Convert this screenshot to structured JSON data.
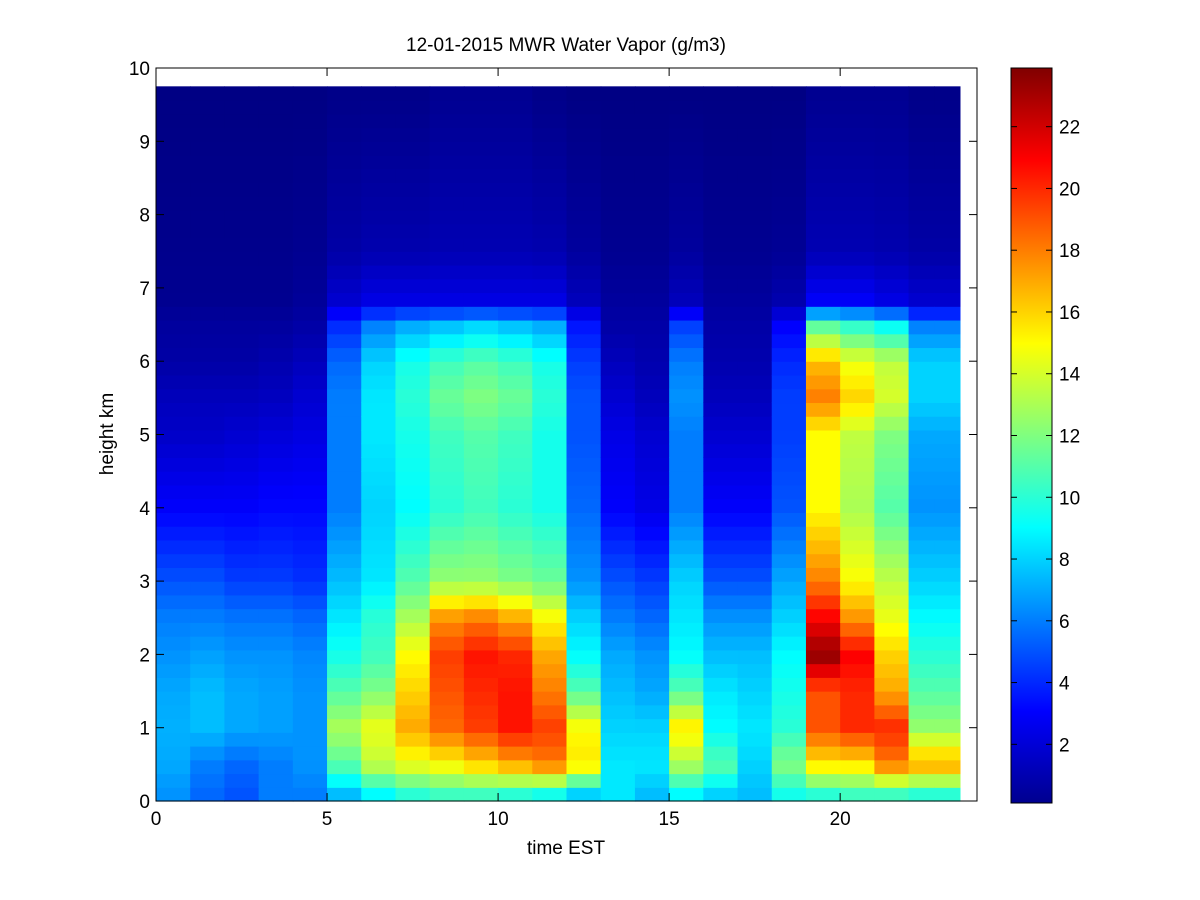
{
  "chart_data": {
    "type": "heatmap",
    "title": "12-01-2015 MWR Water Vapor (g/m3)",
    "xlabel": "time EST",
    "ylabel": "height km",
    "xlim": [
      0,
      24
    ],
    "ylim": [
      0,
      10
    ],
    "x_ticks": [
      "0",
      "5",
      "10",
      "15",
      "20"
    ],
    "y_ticks": [
      "0",
      "1",
      "2",
      "3",
      "4",
      "5",
      "6",
      "7",
      "8",
      "9",
      "10"
    ],
    "colorbar": {
      "colormap": "jet",
      "range": [
        0.1,
        23.9
      ],
      "ticks": [
        "2",
        "4",
        "6",
        "8",
        "10",
        "12",
        "14",
        "16",
        "18",
        "20",
        "22"
      ]
    },
    "data_extent": {
      "x_start": 0,
      "x_end": 23.5,
      "y_start": 0,
      "y_end": 9.75
    },
    "time_hours": [
      0.5,
      1.5,
      2.5,
      3.5,
      4.5,
      5.5,
      6.5,
      7.5,
      8.5,
      9.5,
      10.5,
      11.5,
      12.5,
      13.5,
      14.5,
      15.5,
      16.5,
      17.5,
      18.5,
      19.5,
      20.5,
      21.5,
      22.5,
      23.0
    ],
    "profile_heights_km": [
      0.1,
      0.5,
      1.0,
      1.5,
      2.0,
      2.5,
      3.0,
      4.0,
      5.0,
      5.5,
      6.0,
      6.5,
      6.8,
      7.5,
      9.7
    ],
    "profiles_g_m3": [
      [
        6.5,
        7.0,
        7.2,
        7.0,
        6.5,
        6.0,
        5.0,
        3.0,
        1.8,
        1.5,
        1.0,
        0.8,
        0.5,
        0.4,
        0.2
      ],
      [
        5.5,
        6.0,
        7.5,
        7.5,
        6.8,
        6.0,
        5.0,
        3.0,
        1.8,
        1.5,
        1.0,
        0.8,
        0.5,
        0.4,
        0.2
      ],
      [
        5.0,
        5.5,
        7.0,
        7.0,
        6.5,
        5.8,
        4.5,
        3.0,
        2.0,
        1.5,
        1.0,
        0.8,
        0.5,
        0.4,
        0.2
      ],
      [
        6.0,
        6.0,
        6.8,
        6.8,
        6.5,
        5.8,
        4.5,
        3.2,
        2.2,
        1.6,
        1.2,
        0.8,
        0.5,
        0.4,
        0.2
      ],
      [
        6.0,
        6.5,
        6.5,
        6.5,
        6.2,
        5.5,
        4.2,
        3.2,
        2.4,
        2.0,
        1.5,
        1.0,
        0.7,
        0.5,
        0.2
      ],
      [
        7.5,
        11.0,
        13.0,
        11.0,
        9.5,
        8.5,
        7.5,
        6.0,
        6.0,
        6.0,
        5.5,
        4.0,
        2.0,
        1.0,
        0.3
      ],
      [
        9.0,
        13.5,
        14.5,
        12.0,
        10.5,
        10.0,
        8.5,
        8.0,
        8.5,
        8.5,
        8.0,
        6.0,
        2.5,
        1.2,
        0.3
      ],
      [
        10.0,
        14.5,
        17.0,
        16.0,
        15.0,
        13.0,
        11.0,
        9.0,
        9.5,
        10.0,
        9.5,
        7.0,
        2.5,
        1.2,
        0.3
      ],
      [
        10.5,
        15.0,
        18.5,
        19.0,
        19.5,
        17.5,
        12.5,
        10.0,
        10.5,
        11.5,
        10.5,
        7.5,
        2.5,
        1.3,
        0.5
      ],
      [
        10.5,
        16.0,
        19.5,
        20.0,
        20.5,
        18.0,
        12.5,
        10.5,
        11.0,
        12.0,
        11.0,
        8.0,
        2.5,
        1.3,
        0.5
      ],
      [
        10.0,
        17.0,
        20.5,
        20.5,
        20.0,
        17.0,
        12.0,
        10.0,
        10.5,
        11.5,
        10.5,
        7.5,
        2.5,
        1.3,
        0.5
      ],
      [
        9.5,
        18.0,
        19.5,
        18.0,
        17.0,
        15.0,
        11.5,
        9.5,
        9.5,
        10.0,
        9.5,
        7.0,
        2.5,
        1.2,
        0.3
      ],
      [
        8.0,
        15.5,
        15.0,
        11.0,
        9.0,
        8.0,
        6.5,
        5.5,
        5.0,
        5.0,
        4.5,
        3.5,
        1.5,
        0.8,
        0.2
      ],
      [
        8.5,
        8.5,
        8.0,
        7.5,
        7.0,
        6.0,
        5.0,
        3.0,
        2.5,
        2.0,
        1.5,
        1.0,
        0.8,
        0.5,
        0.2
      ],
      [
        7.5,
        8.5,
        8.0,
        7.0,
        6.5,
        5.5,
        4.5,
        2.5,
        2.0,
        1.5,
        1.2,
        1.0,
        0.8,
        0.5,
        0.2
      ],
      [
        9.0,
        13.0,
        15.5,
        11.0,
        9.0,
        8.5,
        8.0,
        6.0,
        6.0,
        6.5,
        6.0,
        4.5,
        1.5,
        0.8,
        0.2
      ],
      [
        8.0,
        11.0,
        9.0,
        8.5,
        7.5,
        6.5,
        5.0,
        3.0,
        2.0,
        1.5,
        1.2,
        1.0,
        0.8,
        0.5,
        0.2
      ],
      [
        7.5,
        8.0,
        8.5,
        8.0,
        7.5,
        6.5,
        5.0,
        3.0,
        2.0,
        1.5,
        1.2,
        1.0,
        0.8,
        0.5,
        0.2
      ],
      [
        9.5,
        12.0,
        10.0,
        9.5,
        9.0,
        8.0,
        7.0,
        5.0,
        4.5,
        4.5,
        4.0,
        3.0,
        1.2,
        0.6,
        0.2
      ],
      [
        10.0,
        15.5,
        19.0,
        19.0,
        23.5,
        21.0,
        18.0,
        15.0,
        15.0,
        18.0,
        16.5,
        11.0,
        3.0,
        1.3,
        0.5
      ],
      [
        10.5,
        15.5,
        20.0,
        20.0,
        21.0,
        17.5,
        15.0,
        13.0,
        13.5,
        16.0,
        14.5,
        10.0,
        3.0,
        1.3,
        0.5
      ],
      [
        10.5,
        18.0,
        20.0,
        17.0,
        16.0,
        14.5,
        13.5,
        11.0,
        12.0,
        14.0,
        13.5,
        9.0,
        2.5,
        1.2,
        0.5
      ],
      [
        10.0,
        17.0,
        12.5,
        11.0,
        10.0,
        9.0,
        8.0,
        6.5,
        7.0,
        8.0,
        8.0,
        6.0,
        2.0,
        1.0,
        0.3
      ],
      [
        10.0,
        17.0,
        12.5,
        11.0,
        10.0,
        9.0,
        8.0,
        6.5,
        7.0,
        8.0,
        8.0,
        6.0,
        2.0,
        1.0,
        0.3
      ]
    ]
  }
}
